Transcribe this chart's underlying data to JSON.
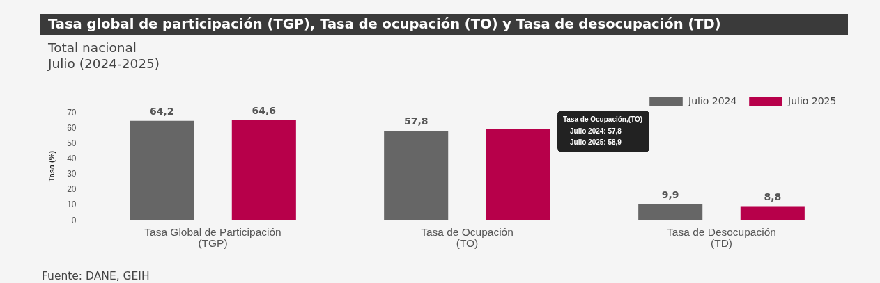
{
  "chart_data": {
    "type": "bar",
    "title": "Tasa global de participación (TGP), Tasa de ocupación (TO) y Tasa de desocupación (TD)",
    "subtitle": "Total nacional\nJulio (2024-2025)",
    "ylabel": "Tasa (%)",
    "categories": [
      "Tasa Global de Participación\n(TGP)",
      "Tasa de Ocupación\n(TO)",
      "Tasa de Desocupación\n(TD)"
    ],
    "series": [
      {
        "name": "Julio 2024",
        "color": "#666666",
        "values": [
          64.2,
          57.8,
          9.9
        ],
        "value_labels": [
          "64,2",
          "57,8",
          "9,9"
        ]
      },
      {
        "name": "Julio 2025",
        "color": "#b7004a",
        "values": [
          64.6,
          58.9,
          8.8
        ],
        "value_labels": [
          "64,6",
          null,
          "8,8"
        ]
      }
    ],
    "ylim": [
      0,
      70
    ],
    "yticks": [
      0,
      10,
      20,
      30,
      40,
      50,
      60,
      70
    ],
    "grid": false,
    "legend": "top right",
    "annotations": [
      "Tasa de Ocupación,(TO)",
      "Julio 2024: 57,8",
      "Julio 2025: 58,9",
      "Fuente: DANE, GEIH"
    ]
  }
}
